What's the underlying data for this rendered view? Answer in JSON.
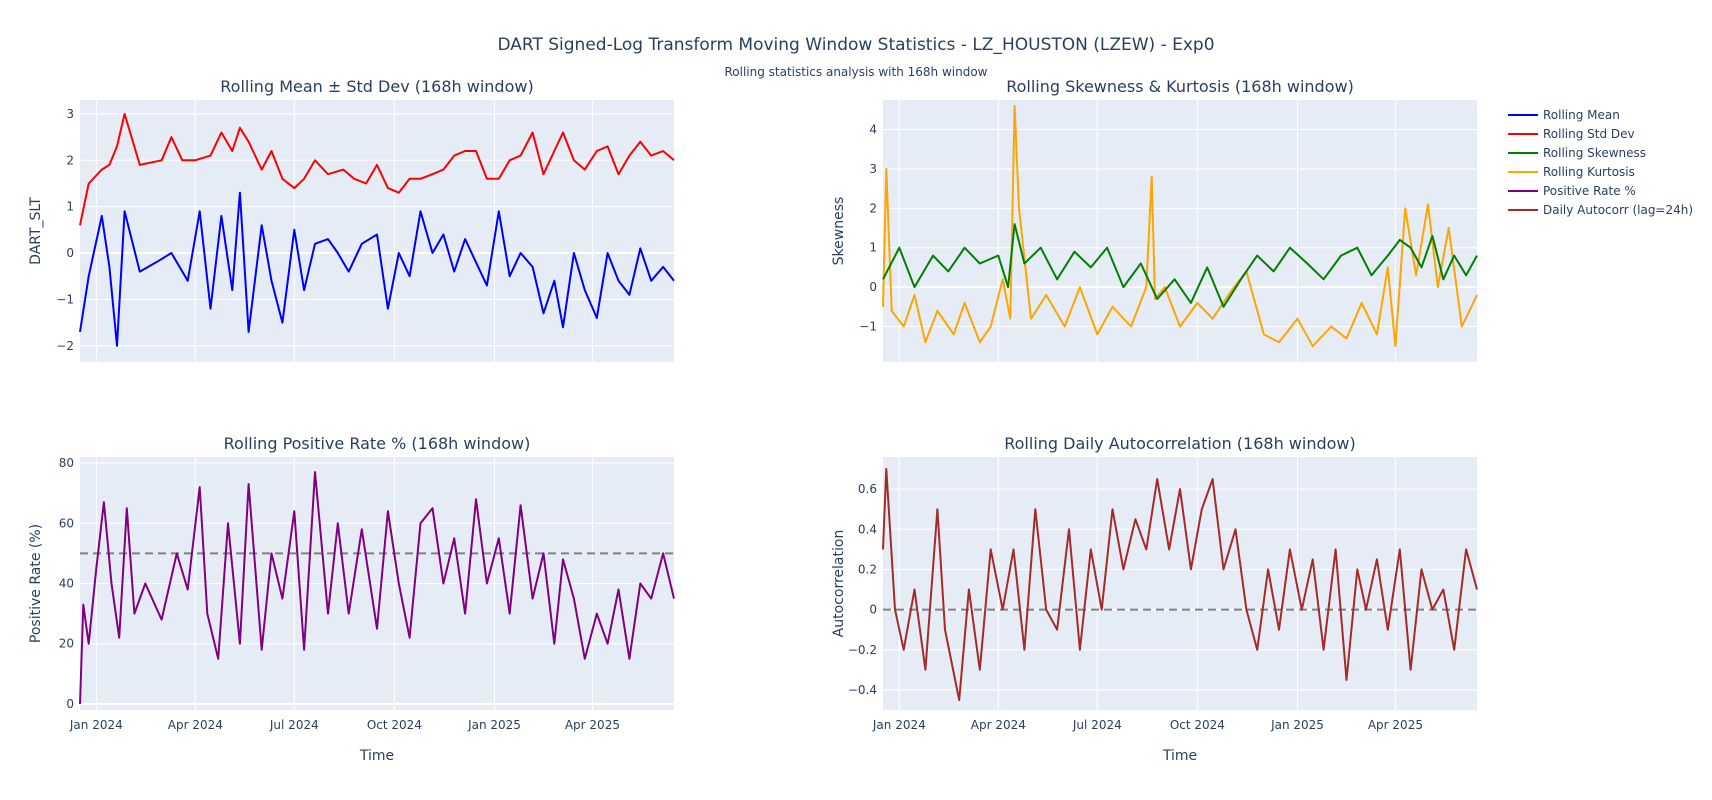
{
  "title": "DART Signed-Log Transform Moving Window Statistics - LZ_HOUSTON (LZEW) - Exp0",
  "subtitle": "Rolling statistics analysis with 168h window",
  "colors": {
    "plot_bg": "#E5ECF6",
    "grid": "#ffffff",
    "text": "#2a3f5f",
    "rolling_mean": "#0000FF",
    "rolling_std": "#FF0000",
    "rolling_skew": "#008000",
    "rolling_kurt": "#FFA500",
    "positive_rate": "#800080",
    "autocorr": "#A52A2A",
    "reference": "#808080"
  },
  "legend": {
    "placement": "top-right",
    "entries": [
      {
        "name": "Rolling Mean",
        "color": "#0000FF"
      },
      {
        "name": "Rolling Std Dev",
        "color": "#FF0000"
      },
      {
        "name": "Rolling Skewness",
        "color": "#008000"
      },
      {
        "name": "Rolling Kurtosis",
        "color": "#FFA500"
      },
      {
        "name": "Positive Rate %",
        "color": "#800080"
      },
      {
        "name": "Daily Autocorr (lag=24h)",
        "color": "#A52A2A"
      }
    ]
  },
  "chart_data": [
    {
      "type": "line",
      "title": "Rolling Mean ± Std Dev (168h window)",
      "xlabel": "",
      "ylabel": "DART_SLT",
      "xlim": [
        "2023-12-17",
        "2025-06-15"
      ],
      "ylim": [
        -2.35,
        3.3
      ],
      "yticks": [
        -2,
        -1,
        0,
        1,
        2,
        3
      ],
      "xticks": [],
      "grid": true,
      "series": [
        {
          "name": "Rolling Std Dev",
          "color": "#FF0000",
          "x": [
            "2023-12-17",
            "2023-12-25",
            "2024-01-06",
            "2024-01-13",
            "2024-01-20",
            "2024-01-27",
            "2024-02-10",
            "2024-03-01",
            "2024-03-10",
            "2024-03-20",
            "2024-04-01",
            "2024-04-15",
            "2024-04-25",
            "2024-05-05",
            "2024-05-12",
            "2024-05-20",
            "2024-06-01",
            "2024-06-10",
            "2024-06-20",
            "2024-07-01",
            "2024-07-10",
            "2024-07-20",
            "2024-08-01",
            "2024-08-15",
            "2024-08-25",
            "2024-09-05",
            "2024-09-15",
            "2024-09-25",
            "2024-10-05",
            "2024-10-15",
            "2024-10-25",
            "2024-11-05",
            "2024-11-15",
            "2024-11-25",
            "2024-12-05",
            "2024-12-15",
            "2024-12-25",
            "2025-01-05",
            "2025-01-15",
            "2025-01-25",
            "2025-02-05",
            "2025-02-15",
            "2025-02-25",
            "2025-03-05",
            "2025-03-15",
            "2025-03-25",
            "2025-04-05",
            "2025-04-15",
            "2025-04-25",
            "2025-05-05",
            "2025-05-15",
            "2025-05-25",
            "2025-06-05",
            "2025-06-15"
          ],
          "values": [
            0.6,
            1.5,
            1.8,
            1.9,
            2.3,
            3.0,
            1.9,
            2.0,
            2.5,
            2.0,
            2.0,
            2.1,
            2.6,
            2.2,
            2.7,
            2.4,
            1.8,
            2.2,
            1.6,
            1.4,
            1.6,
            2.0,
            1.7,
            1.8,
            1.6,
            1.5,
            1.9,
            1.4,
            1.3,
            1.6,
            1.6,
            1.7,
            1.8,
            2.1,
            2.2,
            2.2,
            1.6,
            1.6,
            2.0,
            2.1,
            2.6,
            1.7,
            2.2,
            2.6,
            2.0,
            1.8,
            2.2,
            2.3,
            1.7,
            2.1,
            2.4,
            2.1,
            2.2,
            2.0
          ]
        },
        {
          "name": "Rolling Mean",
          "color": "#0000FF",
          "x": [
            "2023-12-17",
            "2023-12-25",
            "2024-01-06",
            "2024-01-13",
            "2024-01-20",
            "2024-01-27",
            "2024-02-10",
            "2024-02-25",
            "2024-03-10",
            "2024-03-25",
            "2024-04-05",
            "2024-04-15",
            "2024-04-25",
            "2024-05-05",
            "2024-05-12",
            "2024-05-20",
            "2024-06-01",
            "2024-06-10",
            "2024-06-20",
            "2024-07-01",
            "2024-07-10",
            "2024-07-20",
            "2024-08-01",
            "2024-08-10",
            "2024-08-20",
            "2024-09-01",
            "2024-09-15",
            "2024-09-25",
            "2024-10-05",
            "2024-10-15",
            "2024-10-25",
            "2024-11-05",
            "2024-11-15",
            "2024-11-25",
            "2024-12-05",
            "2024-12-15",
            "2024-12-25",
            "2025-01-05",
            "2025-01-15",
            "2025-01-25",
            "2025-02-05",
            "2025-02-15",
            "2025-02-25",
            "2025-03-05",
            "2025-03-15",
            "2025-03-25",
            "2025-04-05",
            "2025-04-15",
            "2025-04-25",
            "2025-05-05",
            "2025-05-15",
            "2025-05-25",
            "2025-06-05",
            "2025-06-15"
          ],
          "values": [
            -1.7,
            -0.5,
            0.8,
            -0.3,
            -2.0,
            0.9,
            -0.4,
            -0.2,
            0.0,
            -0.6,
            0.9,
            -1.2,
            0.8,
            -0.8,
            1.3,
            -1.7,
            0.6,
            -0.6,
            -1.5,
            0.5,
            -0.8,
            0.2,
            0.3,
            0.0,
            -0.4,
            0.2,
            0.4,
            -1.2,
            0.0,
            -0.5,
            0.9,
            0.0,
            0.4,
            -0.4,
            0.3,
            -0.2,
            -0.7,
            0.9,
            -0.5,
            0.0,
            -0.3,
            -1.3,
            -0.6,
            -1.6,
            0.0,
            -0.8,
            -1.4,
            0.0,
            -0.6,
            -0.9,
            0.1,
            -0.6,
            -0.3,
            -0.6
          ]
        }
      ]
    },
    {
      "type": "line",
      "title": "Rolling Skewness & Kurtosis (168h window)",
      "xlabel": "",
      "ylabel": "Skewness",
      "xlim": [
        "2023-12-17",
        "2025-06-15"
      ],
      "ylim": [
        -1.9,
        4.75
      ],
      "yticks": [
        -1,
        0,
        1,
        2,
        3,
        4
      ],
      "xticks": [],
      "grid": true,
      "series": [
        {
          "name": "Rolling Kurtosis",
          "color": "#FFA500",
          "x": [
            "2023-12-17",
            "2023-12-20",
            "2023-12-25",
            "2024-01-05",
            "2024-01-15",
            "2024-01-25",
            "2024-02-05",
            "2024-02-20",
            "2024-03-01",
            "2024-03-15",
            "2024-03-25",
            "2024-04-05",
            "2024-04-12",
            "2024-04-16",
            "2024-04-20",
            "2024-05-01",
            "2024-05-15",
            "2024-06-01",
            "2024-06-15",
            "2024-07-01",
            "2024-07-15",
            "2024-08-01",
            "2024-08-15",
            "2024-08-20",
            "2024-08-23",
            "2024-09-01",
            "2024-09-15",
            "2024-10-01",
            "2024-10-15",
            "2024-11-01",
            "2024-11-15",
            "2024-12-01",
            "2024-12-15",
            "2025-01-01",
            "2025-01-15",
            "2025-02-01",
            "2025-02-15",
            "2025-03-01",
            "2025-03-15",
            "2025-03-25",
            "2025-04-01",
            "2025-04-10",
            "2025-04-20",
            "2025-05-01",
            "2025-05-10",
            "2025-05-20",
            "2025-06-01",
            "2025-06-15"
          ],
          "values": [
            -0.5,
            3.0,
            -0.6,
            -1.0,
            -0.2,
            -1.4,
            -0.6,
            -1.2,
            -0.4,
            -1.4,
            -1.0,
            0.2,
            -0.8,
            4.6,
            2.0,
            -0.8,
            -0.2,
            -1.0,
            0.0,
            -1.2,
            -0.5,
            -1.0,
            0.0,
            2.8,
            -0.3,
            0.0,
            -1.0,
            -0.4,
            -0.8,
            -0.1,
            0.4,
            -1.2,
            -1.4,
            -0.8,
            -1.5,
            -1.0,
            -1.3,
            -0.4,
            -1.2,
            0.5,
            -1.5,
            2.0,
            0.3,
            2.1,
            0.0,
            1.5,
            -1.0,
            -0.2
          ]
        },
        {
          "name": "Rolling Skewness",
          "color": "#008000",
          "x": [
            "2023-12-17",
            "2024-01-01",
            "2024-01-15",
            "2024-02-01",
            "2024-02-15",
            "2024-03-01",
            "2024-03-15",
            "2024-04-01",
            "2024-04-10",
            "2024-04-16",
            "2024-04-25",
            "2024-05-10",
            "2024-05-25",
            "2024-06-10",
            "2024-06-25",
            "2024-07-10",
            "2024-07-25",
            "2024-08-10",
            "2024-08-25",
            "2024-09-10",
            "2024-09-25",
            "2024-10-10",
            "2024-10-25",
            "2024-11-10",
            "2024-11-25",
            "2024-12-10",
            "2024-12-25",
            "2025-01-10",
            "2025-01-25",
            "2025-02-10",
            "2025-02-25",
            "2025-03-10",
            "2025-03-25",
            "2025-04-05",
            "2025-04-15",
            "2025-04-25",
            "2025-05-05",
            "2025-05-15",
            "2025-05-25",
            "2025-06-05",
            "2025-06-15"
          ],
          "values": [
            0.2,
            1.0,
            0.0,
            0.8,
            0.4,
            1.0,
            0.6,
            0.8,
            0.0,
            1.6,
            0.6,
            1.0,
            0.2,
            0.9,
            0.5,
            1.0,
            0.0,
            0.6,
            -0.3,
            0.2,
            -0.4,
            0.5,
            -0.5,
            0.2,
            0.8,
            0.4,
            1.0,
            0.6,
            0.2,
            0.8,
            1.0,
            0.3,
            0.8,
            1.2,
            1.0,
            0.5,
            1.3,
            0.2,
            0.8,
            0.3,
            0.8
          ]
        }
      ]
    },
    {
      "type": "line",
      "title": "Rolling Positive Rate % (168h window)",
      "xlabel": "Time",
      "ylabel": "Positive Rate (%)",
      "xlim": [
        "2023-12-17",
        "2025-06-15"
      ],
      "ylim": [
        -2,
        82
      ],
      "yticks": [
        0,
        20,
        40,
        60,
        80
      ],
      "xticks": [
        {
          "date": "2024-01-01",
          "label": "Jan 2024"
        },
        {
          "date": "2024-04-01",
          "label": "Apr 2024"
        },
        {
          "date": "2024-07-01",
          "label": "Jul 2024"
        },
        {
          "date": "2024-10-01",
          "label": "Oct 2024"
        },
        {
          "date": "2025-01-01",
          "label": "Jan 2025"
        },
        {
          "date": "2025-04-01",
          "label": "Apr 2025"
        }
      ],
      "reference_line": 50,
      "grid": true,
      "series": [
        {
          "name": "Positive Rate %",
          "color": "#800080",
          "x": [
            "2023-12-17",
            "2023-12-20",
            "2023-12-25",
            "2024-01-01",
            "2024-01-08",
            "2024-01-15",
            "2024-01-22",
            "2024-01-29",
            "2024-02-05",
            "2024-02-15",
            "2024-03-01",
            "2024-03-15",
            "2024-03-25",
            "2024-04-05",
            "2024-04-12",
            "2024-04-22",
            "2024-05-01",
            "2024-05-12",
            "2024-05-20",
            "2024-06-01",
            "2024-06-10",
            "2024-06-20",
            "2024-07-01",
            "2024-07-10",
            "2024-07-20",
            "2024-08-01",
            "2024-08-10",
            "2024-08-20",
            "2024-09-01",
            "2024-09-15",
            "2024-09-25",
            "2024-10-05",
            "2024-10-15",
            "2024-10-25",
            "2024-11-05",
            "2024-11-15",
            "2024-11-25",
            "2024-12-05",
            "2024-12-15",
            "2024-12-25",
            "2025-01-05",
            "2025-01-15",
            "2025-01-25",
            "2025-02-05",
            "2025-02-15",
            "2025-02-25",
            "2025-03-05",
            "2025-03-15",
            "2025-03-25",
            "2025-04-05",
            "2025-04-15",
            "2025-04-25",
            "2025-05-05",
            "2025-05-15",
            "2025-05-25",
            "2025-06-05",
            "2025-06-15"
          ],
          "values": [
            0,
            33,
            20,
            45,
            67,
            40,
            22,
            65,
            30,
            40,
            28,
            50,
            38,
            72,
            30,
            15,
            60,
            20,
            73,
            18,
            50,
            35,
            64,
            18,
            77,
            30,
            60,
            30,
            58,
            25,
            64,
            40,
            22,
            60,
            65,
            40,
            55,
            30,
            68,
            40,
            55,
            30,
            66,
            35,
            50,
            20,
            48,
            35,
            15,
            30,
            20,
            38,
            15,
            40,
            35,
            50,
            35
          ]
        }
      ]
    },
    {
      "type": "line",
      "title": "Rolling Daily Autocorrelation (168h window)",
      "xlabel": "Time",
      "ylabel": "Autocorrelation",
      "xlim": [
        "2023-12-17",
        "2025-06-15"
      ],
      "ylim": [
        -0.5,
        0.76
      ],
      "yticks": [
        -0.4,
        -0.2,
        0,
        0.2,
        0.4,
        0.6
      ],
      "xticks": [
        {
          "date": "2024-01-01",
          "label": "Jan 2024"
        },
        {
          "date": "2024-04-01",
          "label": "Apr 2024"
        },
        {
          "date": "2024-07-01",
          "label": "Jul 2024"
        },
        {
          "date": "2024-10-01",
          "label": "Oct 2024"
        },
        {
          "date": "2025-01-01",
          "label": "Jan 2025"
        },
        {
          "date": "2025-04-01",
          "label": "Apr 2025"
        }
      ],
      "reference_line": 0,
      "grid": true,
      "series": [
        {
          "name": "Daily Autocorr (lag=24h)",
          "color": "#A52A2A",
          "x": [
            "2023-12-17",
            "2023-12-20",
            "2023-12-28",
            "2024-01-05",
            "2024-01-15",
            "2024-01-25",
            "2024-02-05",
            "2024-02-12",
            "2024-02-25",
            "2024-03-05",
            "2024-03-15",
            "2024-03-25",
            "2024-04-05",
            "2024-04-15",
            "2024-04-25",
            "2024-05-05",
            "2024-05-15",
            "2024-05-25",
            "2024-06-05",
            "2024-06-15",
            "2024-06-25",
            "2024-07-05",
            "2024-07-15",
            "2024-07-25",
            "2024-08-05",
            "2024-08-15",
            "2024-08-25",
            "2024-09-05",
            "2024-09-15",
            "2024-09-25",
            "2024-10-05",
            "2024-10-15",
            "2024-10-25",
            "2024-11-05",
            "2024-11-15",
            "2024-11-25",
            "2024-12-05",
            "2024-12-15",
            "2024-12-25",
            "2025-01-05",
            "2025-01-15",
            "2025-01-25",
            "2025-02-05",
            "2025-02-15",
            "2025-02-25",
            "2025-03-05",
            "2025-03-15",
            "2025-03-25",
            "2025-04-05",
            "2025-04-15",
            "2025-04-25",
            "2025-05-05",
            "2025-05-15",
            "2025-05-25",
            "2025-06-05",
            "2025-06-15"
          ],
          "values": [
            0.3,
            0.7,
            0.0,
            -0.2,
            0.1,
            -0.3,
            0.5,
            -0.1,
            -0.45,
            0.1,
            -0.3,
            0.3,
            0.0,
            0.3,
            -0.2,
            0.5,
            0.0,
            -0.1,
            0.4,
            -0.2,
            0.3,
            0.0,
            0.5,
            0.2,
            0.45,
            0.3,
            0.65,
            0.3,
            0.6,
            0.2,
            0.5,
            0.65,
            0.2,
            0.4,
            0.0,
            -0.2,
            0.2,
            -0.1,
            0.3,
            0.0,
            0.25,
            -0.2,
            0.3,
            -0.35,
            0.2,
            0.0,
            0.25,
            -0.1,
            0.3,
            -0.3,
            0.2,
            0.0,
            0.1,
            -0.2,
            0.3,
            0.1
          ]
        }
      ]
    }
  ]
}
